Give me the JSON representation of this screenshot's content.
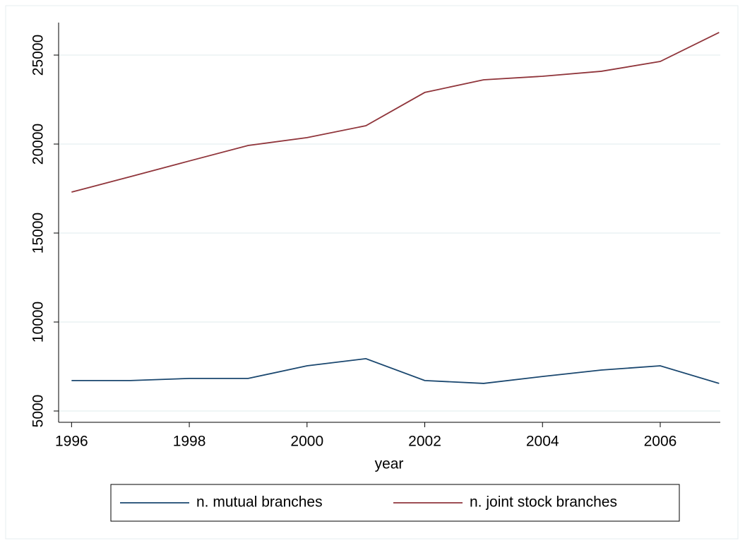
{
  "chart_data": {
    "type": "line",
    "x": [
      1996,
      1997,
      1998,
      1999,
      2000,
      2001,
      2002,
      2003,
      2004,
      2005,
      2006,
      2007
    ],
    "series": [
      {
        "name": "n. mutual branches",
        "color": "#1a476f",
        "values": [
          6710,
          6710,
          6830,
          6830,
          7540,
          7940,
          6710,
          6550,
          6940,
          7300,
          7540,
          6550
        ]
      },
      {
        "name": "n. joint stock branches",
        "color": "#90353b",
        "values": [
          17300,
          18170,
          19050,
          19920,
          20360,
          21030,
          22900,
          23610,
          23810,
          24090,
          24640,
          26270
        ]
      }
    ],
    "xlabel": "year",
    "xlim": [
      1995.78,
      2007.02
    ],
    "xticks": [
      1996,
      1998,
      2000,
      2002,
      2004,
      2006
    ],
    "ylim": [
      4365,
      26825
    ],
    "yticks": [
      5000,
      10000,
      15000,
      20000,
      25000
    ],
    "grid": true,
    "legend": "bottom"
  }
}
